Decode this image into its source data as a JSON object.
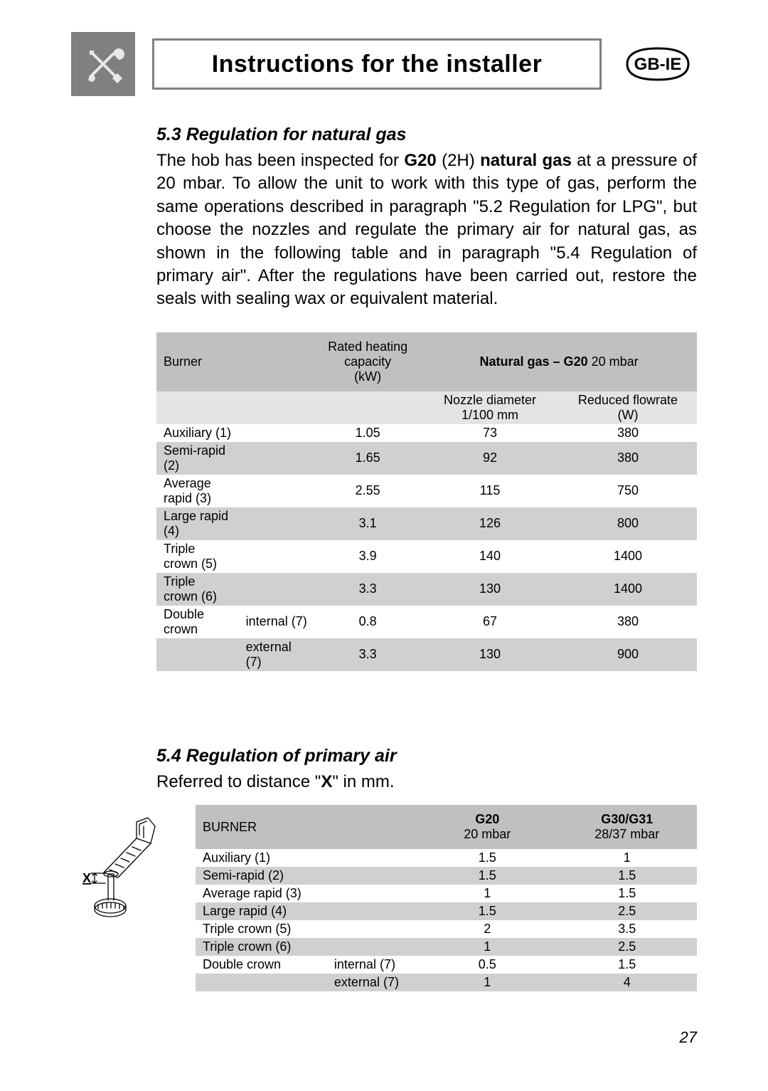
{
  "header": {
    "title": "Instructions for the installer",
    "region_code": "GB-IE"
  },
  "section53": {
    "heading": "5.3 Regulation for natural gas",
    "body_html": "The hob has been inspected for <b>G20</b> (2H) <b>natural gas</b> at a pressure of 20 mbar. To allow the unit to work with this type of gas, perform the same operations described in paragraph \"5.2 Regulation for LPG\", but choose the nozzles and regulate the primary air for natural gas, as shown in the following table and in paragraph \"5.4 Regulation of primary air\". After the regulations have been carried out, restore the seals with sealing wax or equivalent material.",
    "table": {
      "head": {
        "burner": "Burner",
        "rated_heating_html": "Rated heating<br>capacity<br>(kW)",
        "natural_gas_html": "<b>Natural gas – G20</b>  20 mbar",
        "nozzle_html": "Nozzle diameter<br>1/100 mm",
        "reduced_html": "Reduced flowrate<br>(W)"
      },
      "rows": [
        {
          "c1": "Auxiliary (1)",
          "c1b": "",
          "c2": "1.05",
          "c3": "73",
          "c4": "380",
          "shade": "white"
        },
        {
          "c1": "Semi-rapid (2)",
          "c1b": "",
          "c2": "1.65",
          "c3": "92",
          "c4": "380",
          "shade": "mid"
        },
        {
          "c1": "Average rapid (3)",
          "c1b": "",
          "c2": "2.55",
          "c3": "115",
          "c4": "750",
          "shade": "white"
        },
        {
          "c1": "Large rapid (4)",
          "c1b": "",
          "c2": "3.1",
          "c3": "126",
          "c4": "800",
          "shade": "mid"
        },
        {
          "c1": "Triple crown (5)",
          "c1b": "",
          "c2": "3.9",
          "c3": "140",
          "c4": "1400",
          "shade": "white"
        },
        {
          "c1": "Triple crown (6)",
          "c1b": "",
          "c2": "3.3",
          "c3": "130",
          "c4": "1400",
          "shade": "mid"
        },
        {
          "c1": "Double crown",
          "c1b": "internal (7)",
          "c2": "0.8",
          "c3": "67",
          "c4": "380",
          "shade": "white"
        },
        {
          "c1": "",
          "c1b": "external (7)",
          "c2": "3.3",
          "c3": "130",
          "c4": "900",
          "shade": "mid"
        }
      ]
    }
  },
  "section54": {
    "heading": "5.4 Regulation of primary air",
    "intro_html": "Referred to distance \"<b>X</b>\" in mm.",
    "table": {
      "head": {
        "burner": "BURNER",
        "g20_html": "<b>G20</b><br>20 mbar",
        "g30_html": "<b>G30/G31</b><br>28/37 mbar"
      },
      "rows": [
        {
          "c1": "Auxiliary (1)",
          "c1b": "",
          "c2": "1.5",
          "c3": "1",
          "shade": "white"
        },
        {
          "c1": "Semi-rapid (2)",
          "c1b": "",
          "c2": "1.5",
          "c3": "1.5",
          "shade": "mid"
        },
        {
          "c1": "Average rapid (3)",
          "c1b": "",
          "c2": "1",
          "c3": "1.5",
          "shade": "white"
        },
        {
          "c1": "Large rapid (4)",
          "c1b": "",
          "c2": "1.5",
          "c3": "2.5",
          "shade": "mid"
        },
        {
          "c1": "Triple crown (5)",
          "c1b": "",
          "c2": "2",
          "c3": "3.5",
          "shade": "white"
        },
        {
          "c1": "Triple crown (6)",
          "c1b": "",
          "c2": "1",
          "c3": "2.5",
          "shade": "mid"
        },
        {
          "c1": "Double crown",
          "c1b": "internal (7)",
          "c2": "0.5",
          "c3": "1.5",
          "shade": "white"
        },
        {
          "c1": "",
          "c1b": "external (7)",
          "c2": "1",
          "c3": "4",
          "shade": "mid"
        }
      ]
    }
  },
  "page_number": "27"
}
